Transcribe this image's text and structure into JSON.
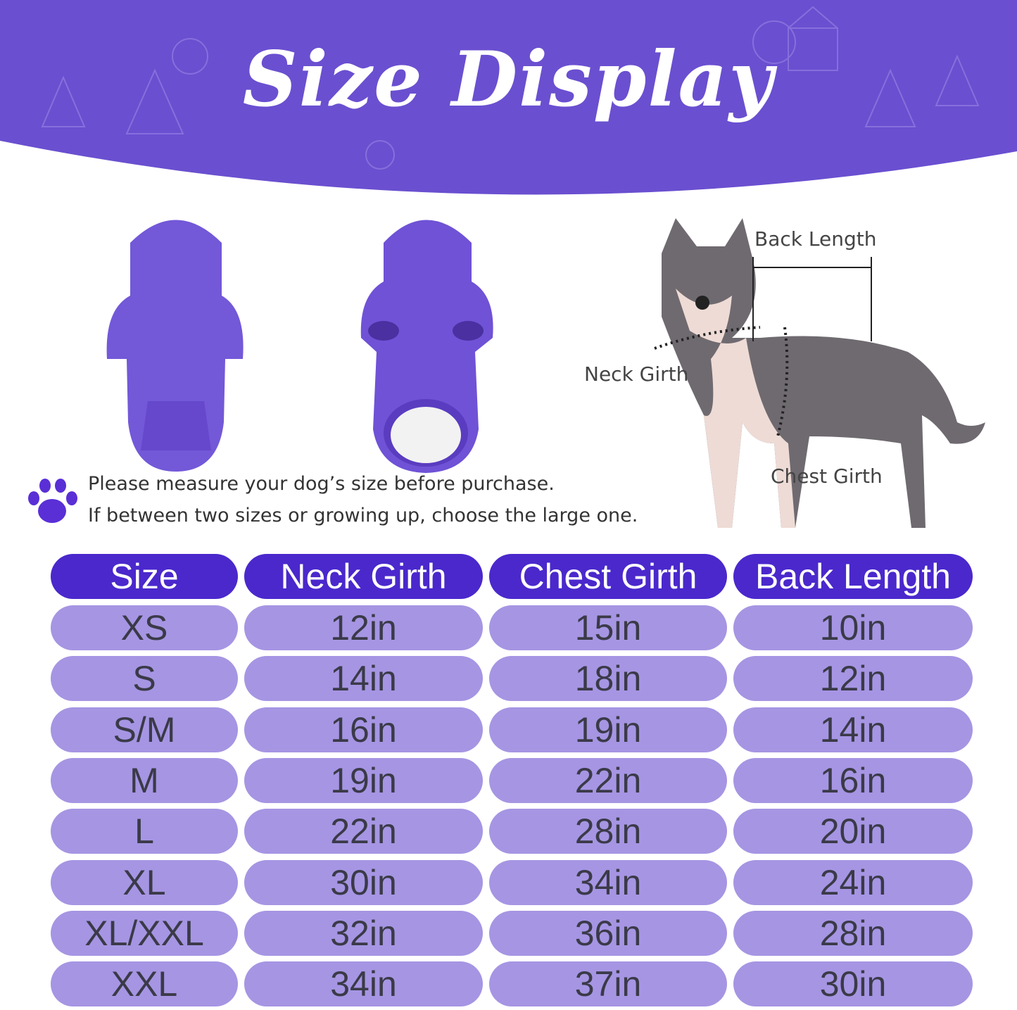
{
  "title": "Size Display",
  "colors": {
    "banner": "#6a4fd0",
    "header_cell": "#4a28cc",
    "data_cell": "#a695e3",
    "text": "#3a3a48"
  },
  "notes": {
    "line1": "Please measure your dog’s size before purchase.",
    "line2": "If between two sizes or growing up, choose the large one."
  },
  "diagram_labels": {
    "back_length": "Back Length",
    "neck_girth": "Neck  Girth",
    "chest_girth": "Chest Girth"
  },
  "table": {
    "headers": [
      "Size",
      "Neck Girth",
      "Chest Girth",
      "Back Length"
    ],
    "rows": [
      [
        "XS",
        "12in",
        "15in",
        "10in"
      ],
      [
        "S",
        "14in",
        "18in",
        "12in"
      ],
      [
        "S/M",
        "16in",
        "19in",
        "14in"
      ],
      [
        "M",
        "19in",
        "22in",
        "16in"
      ],
      [
        "L",
        "22in",
        "28in",
        "20in"
      ],
      [
        "XL",
        "30in",
        "34in",
        "24in"
      ],
      [
        "XL/XXL",
        "32in",
        "36in",
        "28in"
      ],
      [
        "XXL",
        "34in",
        "37in",
        "30in"
      ]
    ]
  }
}
